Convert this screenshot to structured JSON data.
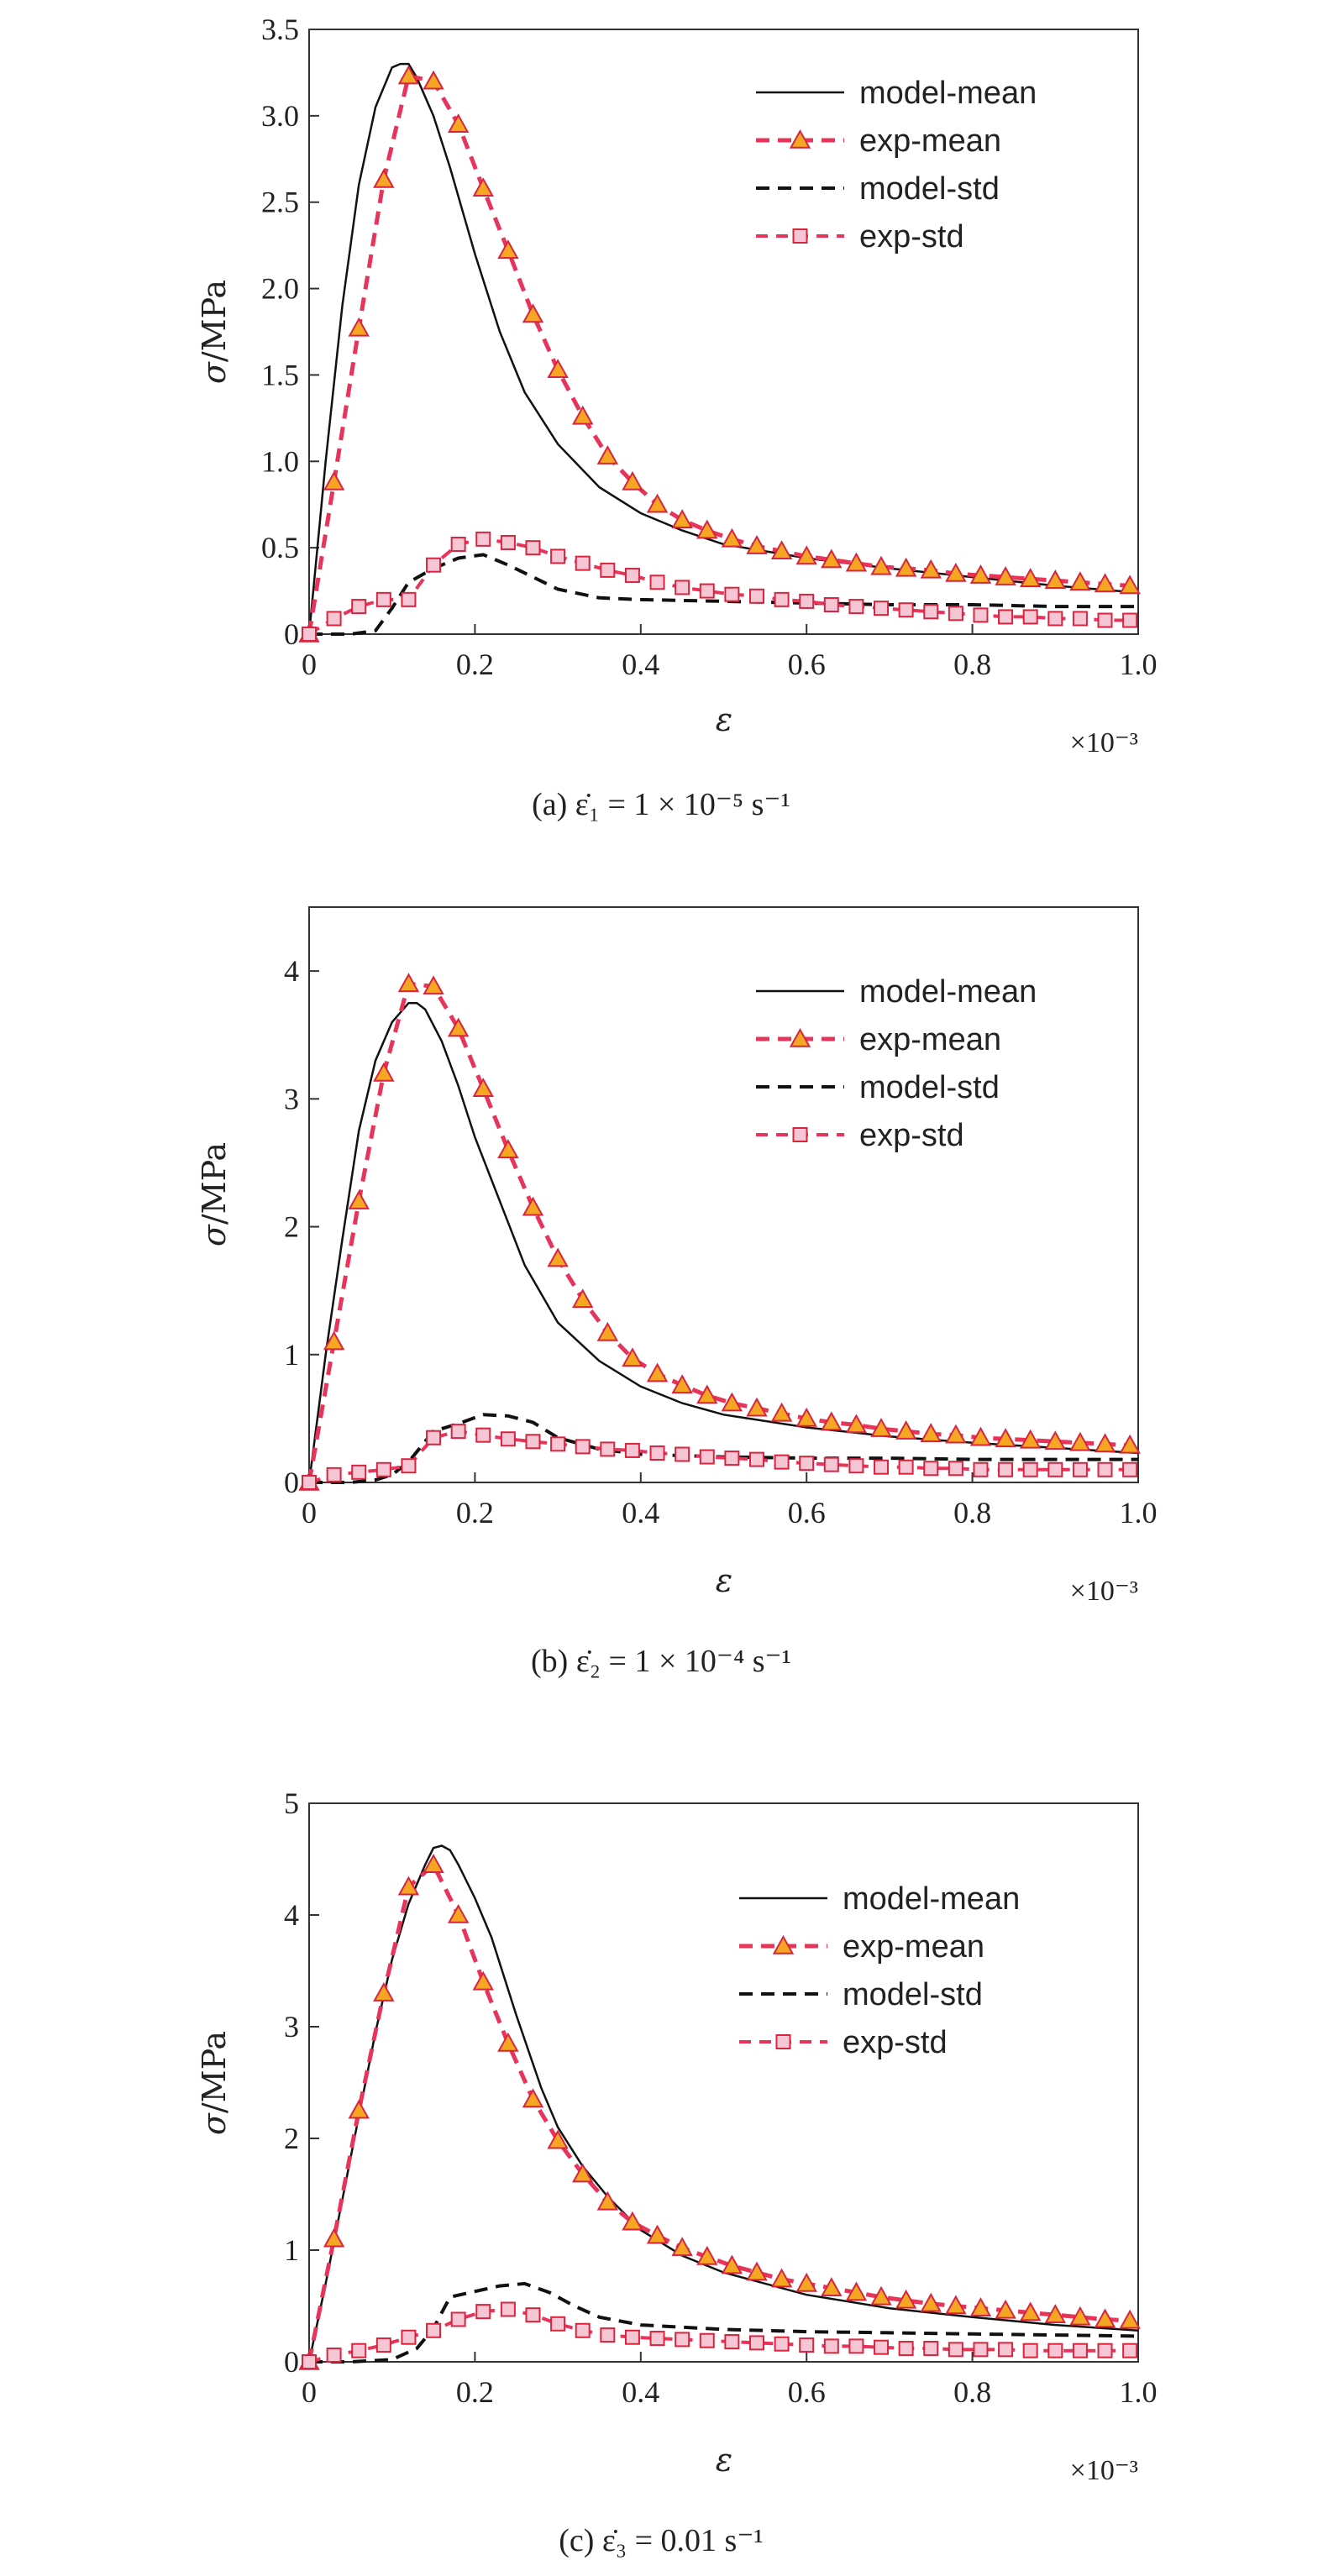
{
  "charts": [
    {
      "caption": "(a) ε̇₁ = 1 × 10⁻⁵ s⁻¹",
      "xlabel": "ε",
      "ylabel_sym": "σ",
      "ylabel_unit": "/MPa",
      "x_multiplier": "×10⁻³",
      "xticks": [
        "0",
        "0.2",
        "0.4",
        "0.6",
        "0.8",
        "1.0"
      ],
      "yticks": [
        "0",
        "0.5",
        "1.0",
        "1.5",
        "2.0",
        "2.5",
        "3.0",
        "3.5"
      ],
      "legend": [
        "model-mean",
        "exp-mean",
        "model-std",
        "exp-std"
      ]
    },
    {
      "caption": "(b) ε̇₂ = 1 × 10⁻⁴ s⁻¹",
      "xlabel": "ε",
      "ylabel_sym": "σ",
      "ylabel_unit": "/MPa",
      "x_multiplier": "×10⁻³",
      "xticks": [
        "0",
        "0.2",
        "0.4",
        "0.6",
        "0.8",
        "1.0"
      ],
      "yticks": [
        "0",
        "1",
        "2",
        "3",
        "4"
      ],
      "legend": [
        "model-mean",
        "exp-mean",
        "model-std",
        "exp-std"
      ]
    },
    {
      "caption": "(c) ε̇₃ = 0.01 s⁻¹",
      "xlabel": "ε",
      "ylabel_sym": "σ",
      "ylabel_unit": "/MPa",
      "x_multiplier": "×10⁻³",
      "xticks": [
        "0",
        "0.2",
        "0.4",
        "0.6",
        "0.8",
        "1.0"
      ],
      "yticks": [
        "0",
        "1",
        "2",
        "3",
        "4",
        "5"
      ],
      "legend": [
        "model-mean",
        "exp-mean",
        "model-std",
        "exp-std"
      ]
    }
  ],
  "chart_data": [
    {
      "type": "line",
      "xlim": [
        0,
        1.0
      ],
      "ylim": [
        0,
        3.5
      ],
      "x_scale_factor": "1e-3",
      "legend_position": "top-right",
      "colors": {
        "model": "#111111",
        "exp_line": "#e8335a",
        "tri_fill": "#f5a623",
        "tri_edge": "#d9243f",
        "sq_edge": "#d9243f",
        "sq_fill": "#f7c6d4"
      },
      "series": [
        {
          "name": "model-mean",
          "style": "solid",
          "color": "#111111",
          "x": [
            0,
            0.02,
            0.04,
            0.06,
            0.08,
            0.1,
            0.11,
            0.12,
            0.13,
            0.15,
            0.17,
            0.2,
            0.23,
            0.26,
            0.3,
            0.35,
            0.4,
            0.45,
            0.5,
            0.6,
            0.7,
            0.8,
            0.9,
            1.0
          ],
          "y": [
            0,
            1.0,
            1.9,
            2.6,
            3.05,
            3.28,
            3.3,
            3.3,
            3.22,
            3.0,
            2.7,
            2.2,
            1.75,
            1.4,
            1.1,
            0.85,
            0.7,
            0.6,
            0.52,
            0.44,
            0.38,
            0.33,
            0.28,
            0.24
          ]
        },
        {
          "name": "exp-mean",
          "style": "dashed-triangle",
          "color": "#e8335a",
          "x": [
            0,
            0.03,
            0.06,
            0.09,
            0.12,
            0.15,
            0.18,
            0.21,
            0.24,
            0.27,
            0.3,
            0.33,
            0.36,
            0.39,
            0.42,
            0.45,
            0.48,
            0.51,
            0.54,
            0.57,
            0.6,
            0.63,
            0.66,
            0.69,
            0.72,
            0.75,
            0.78,
            0.81,
            0.84,
            0.87,
            0.9,
            0.93,
            0.96,
            0.99
          ],
          "y": [
            0,
            0.88,
            1.77,
            2.63,
            3.23,
            3.2,
            2.95,
            2.58,
            2.22,
            1.85,
            1.53,
            1.26,
            1.03,
            0.88,
            0.75,
            0.66,
            0.6,
            0.55,
            0.51,
            0.48,
            0.45,
            0.43,
            0.41,
            0.39,
            0.38,
            0.37,
            0.35,
            0.34,
            0.33,
            0.32,
            0.31,
            0.3,
            0.29,
            0.28
          ]
        },
        {
          "name": "model-std",
          "style": "dashed",
          "color": "#111111",
          "x": [
            0,
            0.05,
            0.08,
            0.1,
            0.12,
            0.15,
            0.18,
            0.21,
            0.24,
            0.27,
            0.3,
            0.35,
            0.4,
            0.5,
            0.6,
            0.7,
            0.8,
            0.9,
            1.0
          ],
          "y": [
            0,
            0,
            0.02,
            0.15,
            0.3,
            0.38,
            0.44,
            0.46,
            0.4,
            0.33,
            0.26,
            0.21,
            0.2,
            0.19,
            0.18,
            0.17,
            0.17,
            0.16,
            0.16
          ]
        },
        {
          "name": "exp-std",
          "style": "dashed-square",
          "color": "#e8335a",
          "x": [
            0,
            0.03,
            0.06,
            0.09,
            0.12,
            0.15,
            0.18,
            0.21,
            0.24,
            0.27,
            0.3,
            0.33,
            0.36,
            0.39,
            0.42,
            0.45,
            0.48,
            0.51,
            0.54,
            0.57,
            0.6,
            0.63,
            0.66,
            0.69,
            0.72,
            0.75,
            0.78,
            0.81,
            0.84,
            0.87,
            0.9,
            0.93,
            0.96,
            0.99
          ],
          "y": [
            0,
            0.09,
            0.16,
            0.2,
            0.2,
            0.4,
            0.52,
            0.55,
            0.53,
            0.5,
            0.45,
            0.41,
            0.37,
            0.34,
            0.3,
            0.27,
            0.25,
            0.23,
            0.22,
            0.2,
            0.19,
            0.17,
            0.16,
            0.15,
            0.14,
            0.13,
            0.12,
            0.11,
            0.1,
            0.1,
            0.09,
            0.09,
            0.08,
            0.08
          ]
        }
      ]
    },
    {
      "type": "line",
      "xlim": [
        0,
        1.0
      ],
      "ylim": [
        0,
        4.5
      ],
      "x_scale_factor": "1e-3",
      "legend_position": "top-right",
      "colors": {
        "model": "#111111",
        "exp_line": "#e8335a",
        "tri_fill": "#f5a623",
        "tri_edge": "#d9243f",
        "sq_edge": "#d9243f",
        "sq_fill": "#f7c6d4"
      },
      "series": [
        {
          "name": "model-mean",
          "style": "solid",
          "color": "#111111",
          "x": [
            0,
            0.02,
            0.04,
            0.06,
            0.08,
            0.1,
            0.12,
            0.13,
            0.14,
            0.16,
            0.18,
            0.2,
            0.23,
            0.26,
            0.3,
            0.35,
            0.4,
            0.45,
            0.5,
            0.6,
            0.7,
            0.8,
            0.9,
            1.0
          ],
          "y": [
            0,
            1.0,
            1.9,
            2.75,
            3.3,
            3.6,
            3.75,
            3.75,
            3.7,
            3.45,
            3.1,
            2.7,
            2.2,
            1.7,
            1.25,
            0.95,
            0.75,
            0.62,
            0.53,
            0.43,
            0.36,
            0.31,
            0.27,
            0.23
          ]
        },
        {
          "name": "exp-mean",
          "style": "dashed-triangle",
          "color": "#e8335a",
          "x": [
            0,
            0.03,
            0.06,
            0.09,
            0.12,
            0.15,
            0.18,
            0.21,
            0.24,
            0.27,
            0.3,
            0.33,
            0.36,
            0.39,
            0.42,
            0.45,
            0.48,
            0.51,
            0.54,
            0.57,
            0.6,
            0.63,
            0.66,
            0.69,
            0.72,
            0.75,
            0.78,
            0.81,
            0.84,
            0.87,
            0.9,
            0.93,
            0.96,
            0.99
          ],
          "y": [
            0,
            1.1,
            2.2,
            3.2,
            3.9,
            3.88,
            3.55,
            3.08,
            2.6,
            2.15,
            1.75,
            1.43,
            1.17,
            0.97,
            0.85,
            0.76,
            0.68,
            0.62,
            0.58,
            0.54,
            0.5,
            0.47,
            0.45,
            0.42,
            0.4,
            0.38,
            0.37,
            0.35,
            0.34,
            0.33,
            0.32,
            0.31,
            0.3,
            0.29
          ]
        },
        {
          "name": "model-std",
          "style": "dashed",
          "color": "#111111",
          "x": [
            0,
            0.05,
            0.08,
            0.1,
            0.12,
            0.15,
            0.18,
            0.21,
            0.24,
            0.27,
            0.3,
            0.35,
            0.4,
            0.5,
            0.6,
            0.7,
            0.8,
            0.9,
            1.0
          ],
          "y": [
            0,
            0,
            0.02,
            0.06,
            0.16,
            0.4,
            0.46,
            0.53,
            0.52,
            0.47,
            0.35,
            0.26,
            0.22,
            0.2,
            0.19,
            0.19,
            0.18,
            0.18,
            0.18
          ]
        },
        {
          "name": "exp-std",
          "style": "dashed-square",
          "color": "#e8335a",
          "x": [
            0,
            0.03,
            0.06,
            0.09,
            0.12,
            0.15,
            0.18,
            0.21,
            0.24,
            0.27,
            0.3,
            0.33,
            0.36,
            0.39,
            0.42,
            0.45,
            0.48,
            0.51,
            0.54,
            0.57,
            0.6,
            0.63,
            0.66,
            0.69,
            0.72,
            0.75,
            0.78,
            0.81,
            0.84,
            0.87,
            0.9,
            0.93,
            0.96,
            0.99
          ],
          "y": [
            0,
            0.06,
            0.08,
            0.1,
            0.13,
            0.35,
            0.4,
            0.37,
            0.34,
            0.32,
            0.3,
            0.28,
            0.26,
            0.25,
            0.23,
            0.22,
            0.2,
            0.19,
            0.18,
            0.16,
            0.15,
            0.14,
            0.13,
            0.12,
            0.12,
            0.11,
            0.11,
            0.1,
            0.1,
            0.1,
            0.1,
            0.1,
            0.1,
            0.1
          ]
        }
      ]
    },
    {
      "type": "line",
      "xlim": [
        0,
        1.0
      ],
      "ylim": [
        0,
        5
      ],
      "x_scale_factor": "1e-3",
      "legend_position": "top-right",
      "colors": {
        "model": "#111111",
        "exp_line": "#e8335a",
        "tri_fill": "#f5a623",
        "tri_edge": "#d9243f",
        "sq_edge": "#d9243f",
        "sq_fill": "#f7c6d4"
      },
      "series": [
        {
          "name": "model-mean",
          "style": "solid",
          "color": "#111111",
          "x": [
            0,
            0.02,
            0.04,
            0.06,
            0.08,
            0.1,
            0.12,
            0.14,
            0.15,
            0.16,
            0.17,
            0.18,
            0.2,
            0.22,
            0.25,
            0.28,
            0.3,
            0.33,
            0.36,
            0.4,
            0.45,
            0.5,
            0.6,
            0.7,
            0.8,
            0.9,
            1.0
          ],
          "y": [
            0,
            0.7,
            1.45,
            2.2,
            2.95,
            3.6,
            4.1,
            4.45,
            4.6,
            4.62,
            4.58,
            4.45,
            4.15,
            3.8,
            3.1,
            2.45,
            2.1,
            1.75,
            1.48,
            1.18,
            0.95,
            0.8,
            0.6,
            0.48,
            0.4,
            0.33,
            0.28
          ]
        },
        {
          "name": "exp-mean",
          "style": "dashed-triangle",
          "color": "#e8335a",
          "x": [
            0,
            0.03,
            0.06,
            0.09,
            0.12,
            0.15,
            0.18,
            0.21,
            0.24,
            0.27,
            0.3,
            0.33,
            0.36,
            0.39,
            0.42,
            0.45,
            0.48,
            0.51,
            0.54,
            0.57,
            0.6,
            0.63,
            0.66,
            0.69,
            0.72,
            0.75,
            0.78,
            0.81,
            0.84,
            0.87,
            0.9,
            0.93,
            0.96,
            0.99
          ],
          "y": [
            0,
            1.1,
            2.25,
            3.3,
            4.25,
            4.45,
            4.0,
            3.4,
            2.85,
            2.35,
            1.98,
            1.68,
            1.43,
            1.25,
            1.13,
            1.02,
            0.94,
            0.86,
            0.8,
            0.74,
            0.7,
            0.66,
            0.62,
            0.58,
            0.55,
            0.52,
            0.5,
            0.48,
            0.46,
            0.44,
            0.42,
            0.4,
            0.38,
            0.37
          ]
        },
        {
          "name": "model-std",
          "style": "dashed",
          "color": "#111111",
          "x": [
            0,
            0.05,
            0.1,
            0.13,
            0.15,
            0.17,
            0.2,
            0.23,
            0.26,
            0.29,
            0.32,
            0.35,
            0.4,
            0.5,
            0.6,
            0.7,
            0.8,
            0.9,
            1.0
          ],
          "y": [
            0,
            0,
            0.02,
            0.12,
            0.3,
            0.58,
            0.63,
            0.68,
            0.7,
            0.62,
            0.5,
            0.4,
            0.33,
            0.29,
            0.27,
            0.26,
            0.25,
            0.24,
            0.23
          ]
        },
        {
          "name": "exp-std",
          "style": "dashed-square",
          "color": "#e8335a",
          "x": [
            0,
            0.03,
            0.06,
            0.09,
            0.12,
            0.15,
            0.18,
            0.21,
            0.24,
            0.27,
            0.3,
            0.33,
            0.36,
            0.39,
            0.42,
            0.45,
            0.48,
            0.51,
            0.54,
            0.57,
            0.6,
            0.63,
            0.66,
            0.69,
            0.72,
            0.75,
            0.78,
            0.81,
            0.84,
            0.87,
            0.9,
            0.93,
            0.96,
            0.99
          ],
          "y": [
            0,
            0.06,
            0.1,
            0.15,
            0.22,
            0.28,
            0.38,
            0.45,
            0.47,
            0.42,
            0.34,
            0.28,
            0.24,
            0.22,
            0.21,
            0.2,
            0.19,
            0.18,
            0.17,
            0.16,
            0.15,
            0.14,
            0.14,
            0.13,
            0.12,
            0.12,
            0.11,
            0.11,
            0.11,
            0.1,
            0.1,
            0.1,
            0.1,
            0.1
          ]
        }
      ]
    }
  ]
}
